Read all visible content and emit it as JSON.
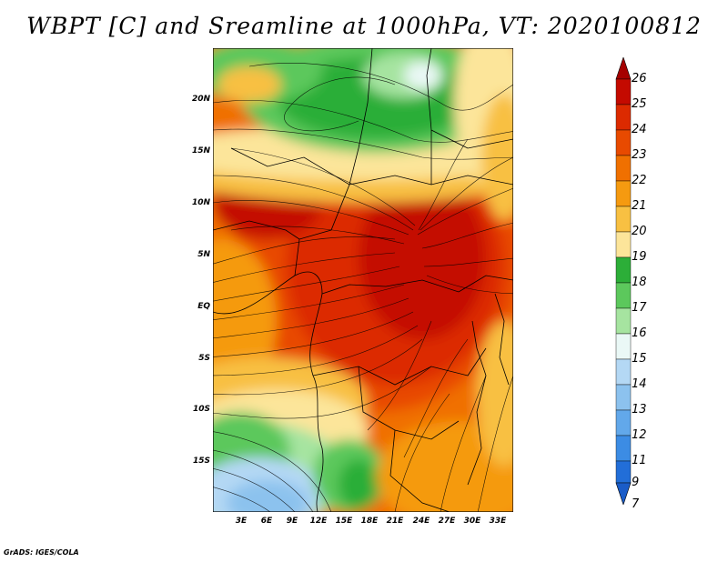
{
  "title": "WBPT [C] and Sreamline at 1000hPa, VT: 2020100812",
  "footer": "GrADS: IGES/COLA",
  "axes": {
    "y_ticks": [
      "20N",
      "15N",
      "10N",
      "5N",
      "EQ",
      "5S",
      "10S",
      "15S"
    ],
    "x_ticks": [
      "3E",
      "6E",
      "9E",
      "12E",
      "15E",
      "18E",
      "21E",
      "24E",
      "27E",
      "30E",
      "33E"
    ]
  },
  "colorbar": {
    "labels": [
      "26",
      "25",
      "24",
      "23",
      "22",
      "21",
      "20",
      "19",
      "18",
      "17",
      "16",
      "15",
      "14",
      "13",
      "12",
      "11",
      "9",
      "7"
    ],
    "colors": [
      "#a50000",
      "#c40a00",
      "#dc2a00",
      "#e84a00",
      "#f07000",
      "#f59a10",
      "#f8c042",
      "#fce59a",
      "#2cae38",
      "#5cc85c",
      "#a6e4a0",
      "#eaf8f6",
      "#b4d8f4",
      "#8cc2ee",
      "#62a8ea",
      "#3c8ce4",
      "#226ed8"
    ]
  },
  "map": {
    "region": "Central Africa",
    "lon_range": [
      0,
      35
    ],
    "lat_range": [
      -20,
      24
    ]
  }
}
